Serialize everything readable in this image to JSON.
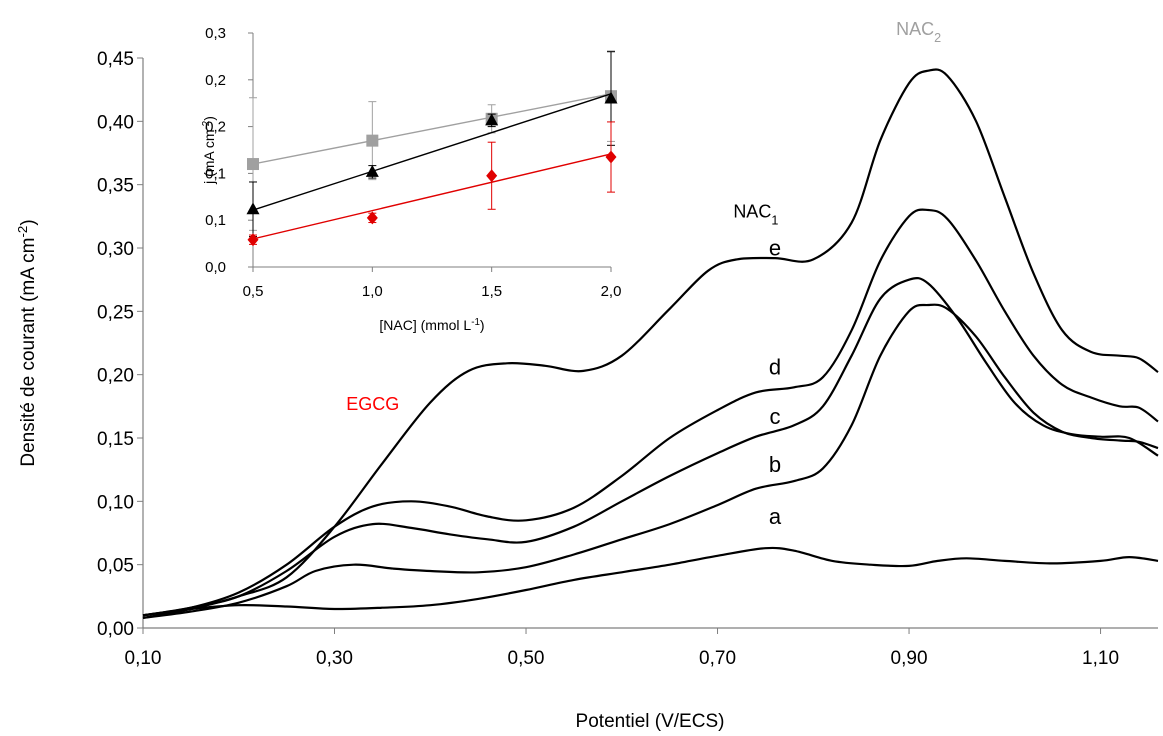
{
  "chart_data": [
    {
      "type": "line",
      "xlabel": "Potentiel (V/ECS)",
      "ylabel": "Densité de courant (mA cm-2)",
      "ylabel_main": "Densité de courant (mA cm",
      "ylabel_sup": "-2",
      "ylabel_end": ")",
      "xlim": [
        0.1,
        1.16
      ],
      "ylim": [
        0.0,
        0.45
      ],
      "x_ticks": [
        "0,10",
        "0,30",
        "0,50",
        "0,70",
        "0,90",
        "1,10"
      ],
      "x_tick_values": [
        0.1,
        0.3,
        0.5,
        0.7,
        0.9,
        1.1
      ],
      "y_ticks": [
        "0,00",
        "0,05",
        "0,10",
        "0,15",
        "0,20",
        "0,25",
        "0,30",
        "0,35",
        "0,40",
        "0,45"
      ],
      "y_tick_values": [
        0.0,
        0.05,
        0.1,
        0.15,
        0.2,
        0.25,
        0.3,
        0.35,
        0.4,
        0.45
      ],
      "grid": false,
      "line_color": "#000000",
      "series": [
        {
          "name": "a",
          "label_at": [
            0.76,
            0.082
          ],
          "points": [
            [
              0.1,
              0.01
            ],
            [
              0.15,
              0.015
            ],
            [
              0.2,
              0.018
            ],
            [
              0.25,
              0.017
            ],
            [
              0.3,
              0.015
            ],
            [
              0.35,
              0.016
            ],
            [
              0.4,
              0.018
            ],
            [
              0.45,
              0.023
            ],
            [
              0.5,
              0.03
            ],
            [
              0.55,
              0.038
            ],
            [
              0.6,
              0.044
            ],
            [
              0.65,
              0.05
            ],
            [
              0.7,
              0.057
            ],
            [
              0.75,
              0.063
            ],
            [
              0.78,
              0.061
            ],
            [
              0.82,
              0.053
            ],
            [
              0.86,
              0.05
            ],
            [
              0.9,
              0.049
            ],
            [
              0.93,
              0.053
            ],
            [
              0.96,
              0.055
            ],
            [
              1.0,
              0.053
            ],
            [
              1.05,
              0.051
            ],
            [
              1.1,
              0.053
            ],
            [
              1.13,
              0.056
            ],
            [
              1.16,
              0.053
            ]
          ]
        },
        {
          "name": "b",
          "label_at": [
            0.76,
            0.123
          ],
          "points": [
            [
              0.1,
              0.008
            ],
            [
              0.15,
              0.013
            ],
            [
              0.2,
              0.02
            ],
            [
              0.25,
              0.033
            ],
            [
              0.28,
              0.045
            ],
            [
              0.32,
              0.05
            ],
            [
              0.36,
              0.047
            ],
            [
              0.4,
              0.045
            ],
            [
              0.45,
              0.044
            ],
            [
              0.5,
              0.048
            ],
            [
              0.55,
              0.058
            ],
            [
              0.6,
              0.07
            ],
            [
              0.65,
              0.082
            ],
            [
              0.7,
              0.097
            ],
            [
              0.74,
              0.11
            ],
            [
              0.78,
              0.116
            ],
            [
              0.81,
              0.126
            ],
            [
              0.84,
              0.16
            ],
            [
              0.87,
              0.215
            ],
            [
              0.9,
              0.25
            ],
            [
              0.92,
              0.255
            ],
            [
              0.94,
              0.252
            ],
            [
              0.97,
              0.23
            ],
            [
              1.0,
              0.198
            ],
            [
              1.03,
              0.17
            ],
            [
              1.06,
              0.155
            ],
            [
              1.09,
              0.15
            ],
            [
              1.12,
              0.148
            ],
            [
              1.14,
              0.147
            ],
            [
              1.16,
              0.142
            ]
          ]
        },
        {
          "name": "c",
          "label_at": [
            0.76,
            0.161
          ],
          "points": [
            [
              0.1,
              0.01
            ],
            [
              0.15,
              0.016
            ],
            [
              0.2,
              0.025
            ],
            [
              0.25,
              0.045
            ],
            [
              0.3,
              0.072
            ],
            [
              0.34,
              0.082
            ],
            [
              0.38,
              0.079
            ],
            [
              0.42,
              0.074
            ],
            [
              0.46,
              0.07
            ],
            [
              0.5,
              0.068
            ],
            [
              0.55,
              0.08
            ],
            [
              0.6,
              0.1
            ],
            [
              0.65,
              0.12
            ],
            [
              0.7,
              0.138
            ],
            [
              0.74,
              0.151
            ],
            [
              0.78,
              0.16
            ],
            [
              0.81,
              0.175
            ],
            [
              0.84,
              0.215
            ],
            [
              0.87,
              0.26
            ],
            [
              0.9,
              0.275
            ],
            [
              0.92,
              0.272
            ],
            [
              0.95,
              0.245
            ],
            [
              0.98,
              0.21
            ],
            [
              1.01,
              0.178
            ],
            [
              1.04,
              0.16
            ],
            [
              1.07,
              0.153
            ],
            [
              1.1,
              0.151
            ],
            [
              1.13,
              0.15
            ],
            [
              1.16,
              0.136
            ]
          ]
        },
        {
          "name": "d",
          "label_at": [
            0.76,
            0.2
          ],
          "points": [
            [
              0.1,
              0.01
            ],
            [
              0.15,
              0.016
            ],
            [
              0.2,
              0.028
            ],
            [
              0.25,
              0.05
            ],
            [
              0.3,
              0.08
            ],
            [
              0.34,
              0.096
            ],
            [
              0.38,
              0.1
            ],
            [
              0.42,
              0.096
            ],
            [
              0.46,
              0.088
            ],
            [
              0.5,
              0.085
            ],
            [
              0.55,
              0.095
            ],
            [
              0.6,
              0.12
            ],
            [
              0.65,
              0.15
            ],
            [
              0.7,
              0.172
            ],
            [
              0.74,
              0.186
            ],
            [
              0.78,
              0.19
            ],
            [
              0.81,
              0.198
            ],
            [
              0.84,
              0.235
            ],
            [
              0.87,
              0.29
            ],
            [
              0.9,
              0.325
            ],
            [
              0.92,
              0.33
            ],
            [
              0.94,
              0.323
            ],
            [
              0.97,
              0.29
            ],
            [
              1.0,
              0.25
            ],
            [
              1.03,
              0.215
            ],
            [
              1.06,
              0.192
            ],
            [
              1.09,
              0.182
            ],
            [
              1.12,
              0.175
            ],
            [
              1.14,
              0.174
            ],
            [
              1.16,
              0.163
            ]
          ]
        },
        {
          "name": "e",
          "label_at": [
            0.76,
            0.294
          ],
          "points": [
            [
              0.1,
              0.008
            ],
            [
              0.15,
              0.015
            ],
            [
              0.2,
              0.025
            ],
            [
              0.25,
              0.04
            ],
            [
              0.3,
              0.08
            ],
            [
              0.35,
              0.13
            ],
            [
              0.4,
              0.178
            ],
            [
              0.44,
              0.203
            ],
            [
              0.48,
              0.209
            ],
            [
              0.52,
              0.207
            ],
            [
              0.56,
              0.203
            ],
            [
              0.6,
              0.215
            ],
            [
              0.65,
              0.252
            ],
            [
              0.69,
              0.282
            ],
            [
              0.72,
              0.291
            ],
            [
              0.76,
              0.292
            ],
            [
              0.8,
              0.291
            ],
            [
              0.84,
              0.32
            ],
            [
              0.87,
              0.385
            ],
            [
              0.9,
              0.43
            ],
            [
              0.92,
              0.44
            ],
            [
              0.94,
              0.436
            ],
            [
              0.97,
              0.4
            ],
            [
              1.0,
              0.34
            ],
            [
              1.03,
              0.28
            ],
            [
              1.06,
              0.235
            ],
            [
              1.09,
              0.218
            ],
            [
              1.12,
              0.215
            ],
            [
              1.14,
              0.213
            ],
            [
              1.16,
              0.202
            ]
          ]
        }
      ],
      "annotations": [
        {
          "text": "EGCG",
          "color": "#ff0000",
          "at": [
            0.34,
            0.172
          ]
        },
        {
          "text": "NAC",
          "sub": "1",
          "color": "#000000",
          "at": [
            0.74,
            0.324
          ]
        },
        {
          "text": "NAC",
          "sub": "2",
          "color": "#a0a0a0",
          "at": [
            0.91,
            0.468
          ]
        }
      ]
    },
    {
      "type": "scatter",
      "inset": true,
      "xlabel": "[NAC] (mmol L-1)",
      "xlabel_main": "[NAC] (mmol L",
      "xlabel_sup": "-1",
      "xlabel_end": ")",
      "ylabel": "j (mA cm-2)",
      "ylabel_main": "j (mA cm",
      "ylabel_sup": "-2",
      "ylabel_end": ")",
      "xlim": [
        0.5,
        2.0
      ],
      "ylim": [
        0.0,
        0.3
      ],
      "x_ticks": [
        "0,5",
        "1,0",
        "1,5",
        "2,0"
      ],
      "x_tick_values": [
        0.5,
        1.0,
        1.5,
        2.0
      ],
      "y_ticks": [
        "0,0",
        "0,1",
        "0,1",
        "0,2",
        "0,2",
        "0,3"
      ],
      "y_tick_values": [
        0.0,
        0.06,
        0.12,
        0.18,
        0.24,
        0.3
      ],
      "grid": false,
      "series": [
        {
          "marker": "square",
          "color": "#a0a0a0",
          "x": [
            0.5,
            1.0,
            1.5,
            2.0
          ],
          "y": [
            0.132,
            0.162,
            0.19,
            0.219
          ],
          "err": [
            0.085,
            0.05,
            0.018,
            0.058
          ],
          "fit": [
            [
              0.5,
              0.132
            ],
            [
              2.0,
              0.222
            ]
          ]
        },
        {
          "marker": "triangle",
          "color": "#000000",
          "x": [
            0.5,
            1.0,
            1.5,
            2.0
          ],
          "y": [
            0.074,
            0.122,
            0.188,
            0.216
          ],
          "err": [
            0.035,
            0.008,
            0.008,
            0.06
          ],
          "fit": [
            [
              0.5,
              0.073
            ],
            [
              2.0,
              0.222
            ]
          ]
        },
        {
          "marker": "diamond",
          "color": "#e00000",
          "x": [
            0.5,
            1.0,
            1.5,
            2.0
          ],
          "y": [
            0.035,
            0.063,
            0.117,
            0.141
          ],
          "err": [
            0.006,
            0.006,
            0.043,
            0.045
          ],
          "fit": [
            [
              0.5,
              0.036
            ],
            [
              2.0,
              0.145
            ]
          ]
        }
      ]
    }
  ]
}
